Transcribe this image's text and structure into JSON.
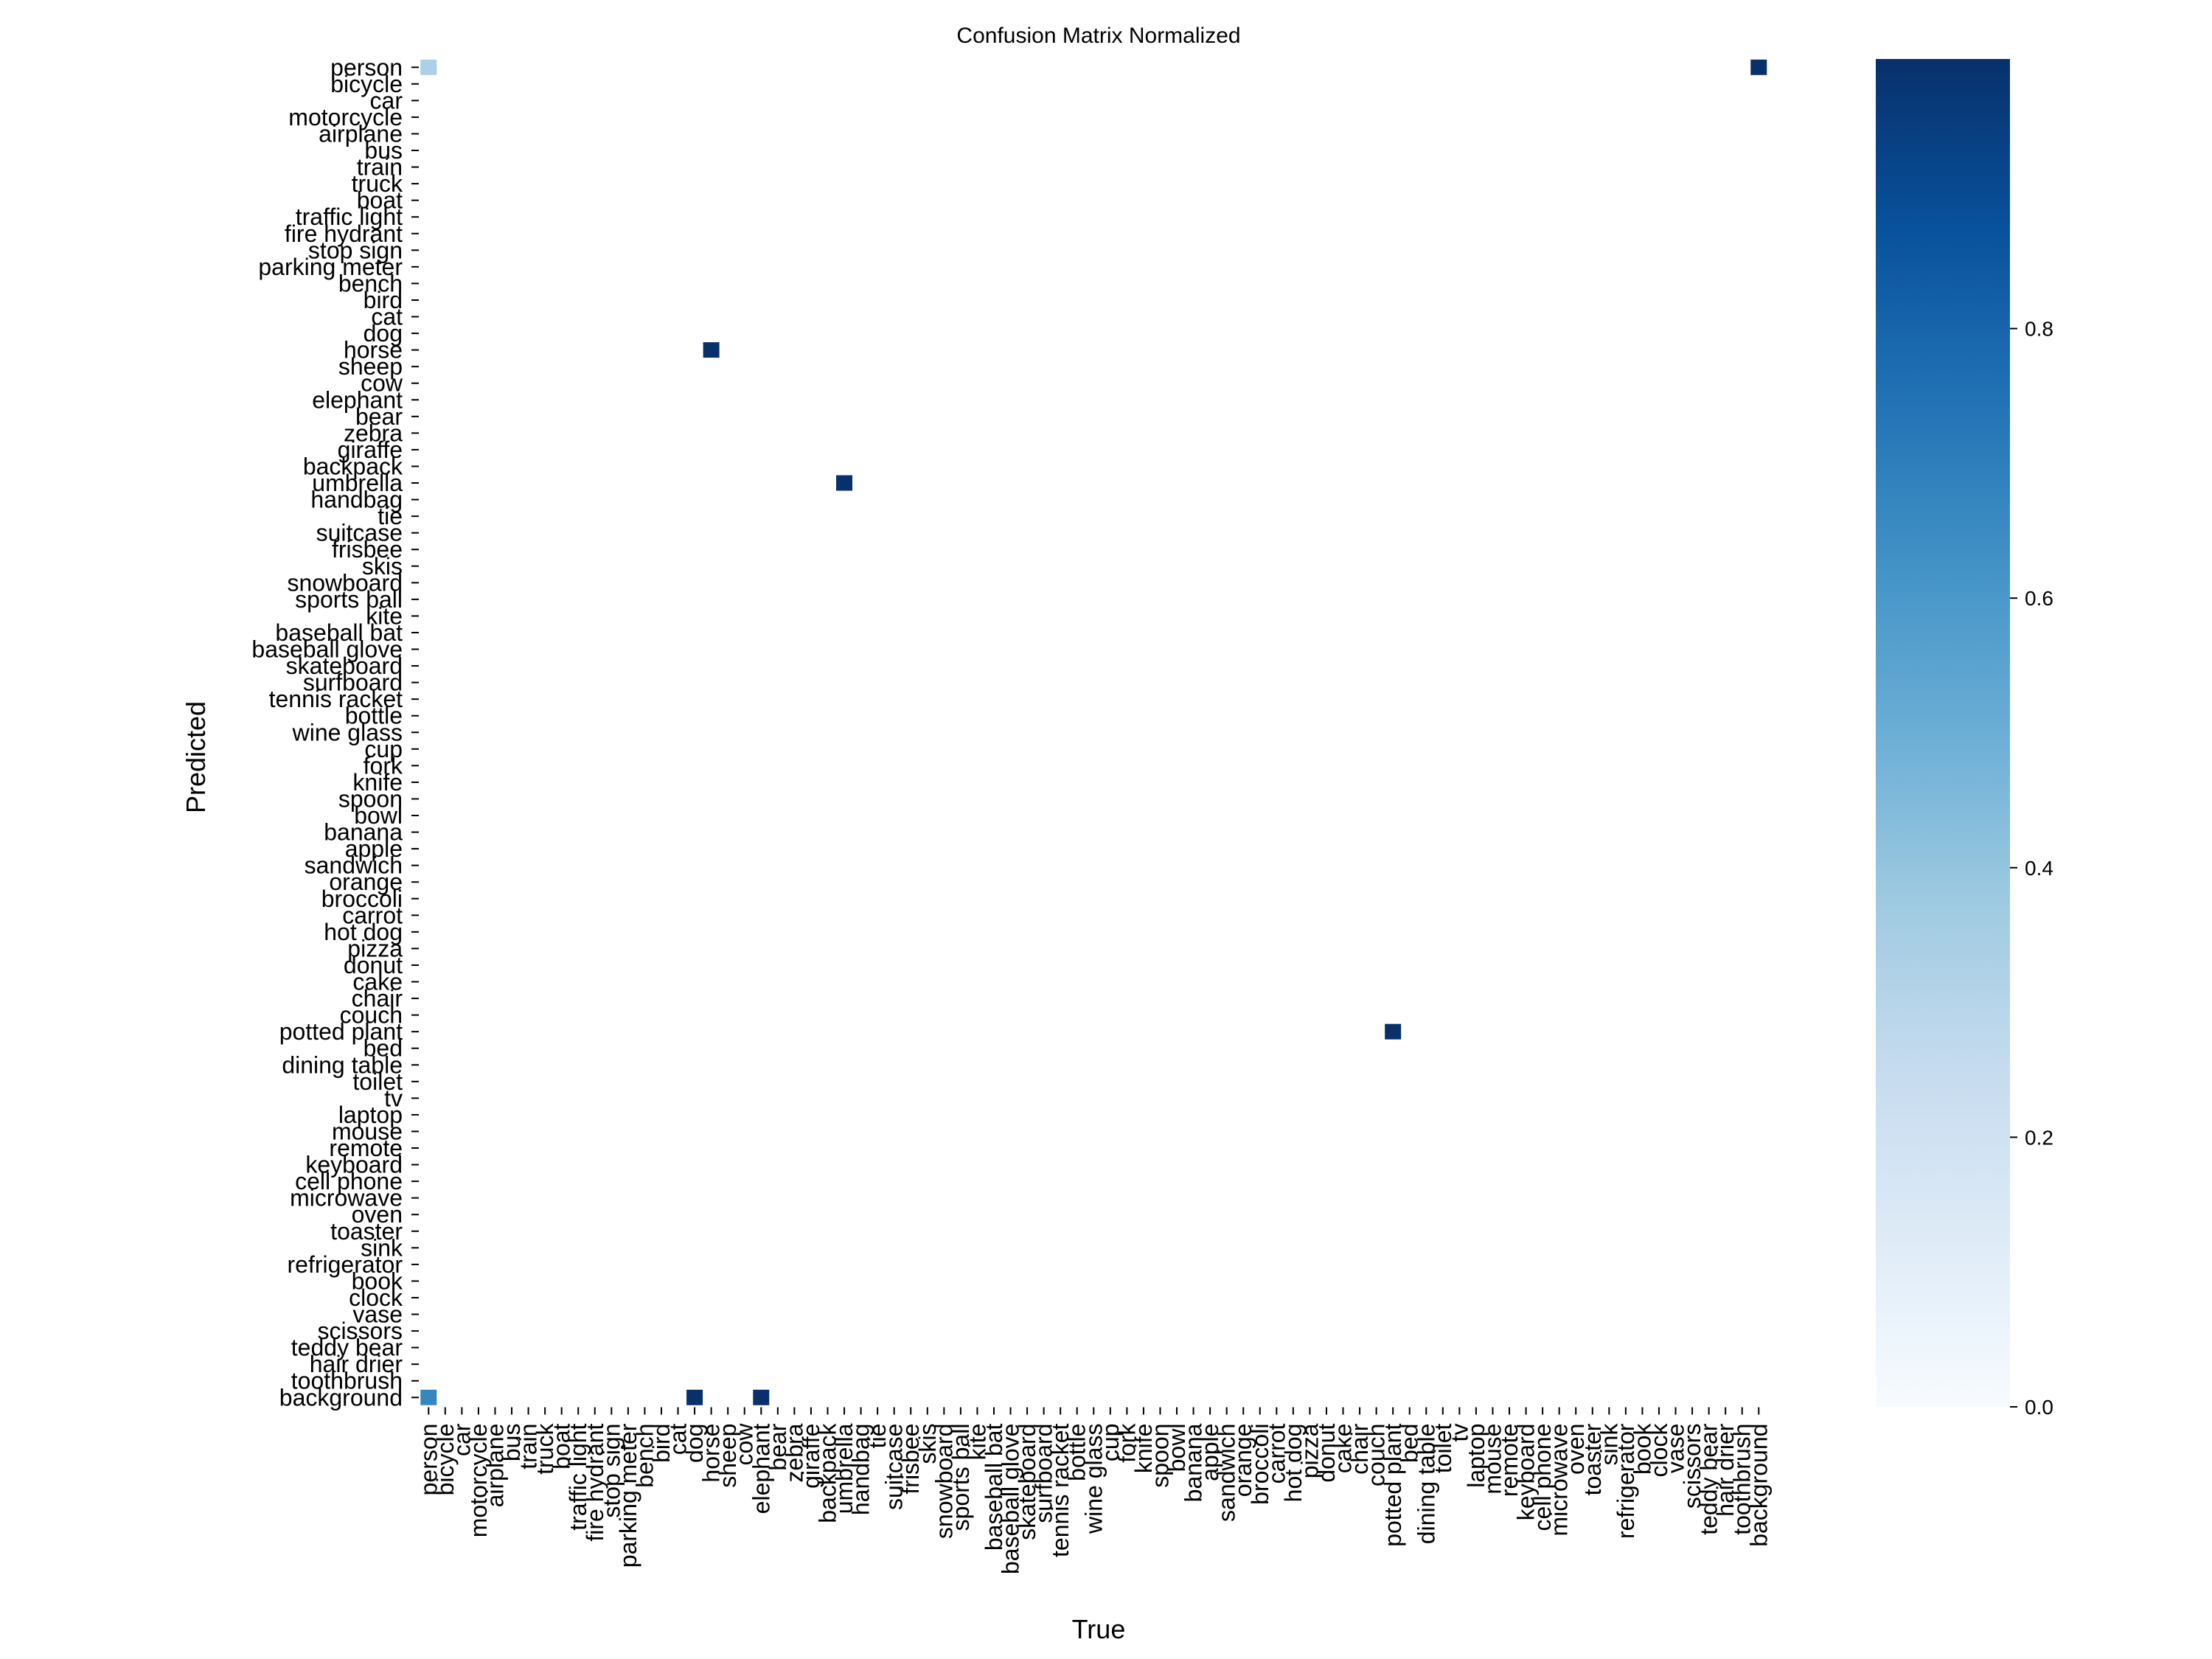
{
  "chart_data": {
    "type": "heatmap",
    "title": "Confusion Matrix Normalized",
    "xlabel": "True",
    "ylabel": "Predicted",
    "colormap": "Blues",
    "color_low": "#f7fbff",
    "color_high": "#08306b",
    "colorbar": {
      "range": [
        0,
        1
      ],
      "ticks": [
        0.0,
        0.2,
        0.4,
        0.6,
        0.8
      ],
      "tick_labels": [
        "0.0",
        "0.2",
        "0.4",
        "0.6",
        "0.8"
      ]
    },
    "labels": [
      "person",
      "bicycle",
      "car",
      "motorcycle",
      "airplane",
      "bus",
      "train",
      "truck",
      "boat",
      "traffic light",
      "fire hydrant",
      "stop sign",
      "parking meter",
      "bench",
      "bird",
      "cat",
      "dog",
      "horse",
      "sheep",
      "cow",
      "elephant",
      "bear",
      "zebra",
      "giraffe",
      "backpack",
      "umbrella",
      "handbag",
      "tie",
      "suitcase",
      "frisbee",
      "skis",
      "snowboard",
      "sports ball",
      "kite",
      "baseball bat",
      "baseball glove",
      "skateboard",
      "surfboard",
      "tennis racket",
      "bottle",
      "wine glass",
      "cup",
      "fork",
      "knife",
      "spoon",
      "bowl",
      "banana",
      "apple",
      "sandwich",
      "orange",
      "broccoli",
      "carrot",
      "hot dog",
      "pizza",
      "donut",
      "cake",
      "chair",
      "couch",
      "potted plant",
      "bed",
      "dining table",
      "toilet",
      "tv",
      "laptop",
      "mouse",
      "remote",
      "keyboard",
      "cell phone",
      "microwave",
      "oven",
      "toaster",
      "sink",
      "refrigerator",
      "book",
      "clock",
      "vase",
      "scissors",
      "teddy bear",
      "hair drier",
      "toothbrush",
      "background"
    ],
    "cells": [
      {
        "pred": "person",
        "true": "person",
        "value": 0.33
      },
      {
        "pred": "background",
        "true": "person",
        "value": 0.67
      },
      {
        "pred": "background",
        "true": "dog",
        "value": 1.0
      },
      {
        "pred": "horse",
        "true": "horse",
        "value": 1.0
      },
      {
        "pred": "background",
        "true": "elephant",
        "value": 1.0
      },
      {
        "pred": "umbrella",
        "true": "umbrella",
        "value": 1.0
      },
      {
        "pred": "potted plant",
        "true": "potted plant",
        "value": 1.0
      },
      {
        "pred": "person",
        "true": "background",
        "value": 1.0
      }
    ]
  }
}
